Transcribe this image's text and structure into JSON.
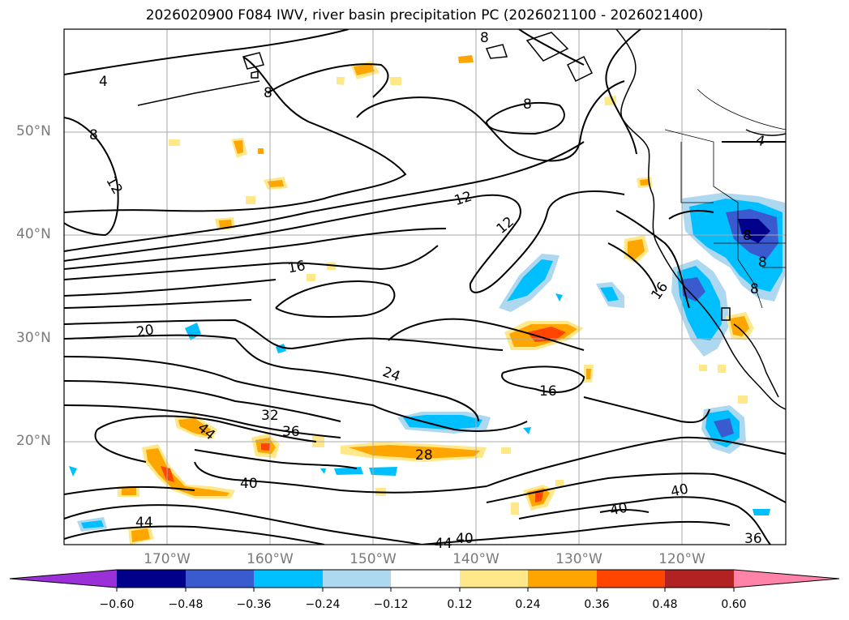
{
  "title": "2026020900 F084 IWV, river basin precipitation PC (2026021100 - 2026021400)",
  "map": {
    "projection": "plate-carree",
    "lon_range": [
      -180,
      -110
    ],
    "lat_range": [
      10,
      60
    ],
    "lat_ticks": [
      "50°N",
      "40°N",
      "30°N",
      "20°N"
    ],
    "lon_ticks": [
      "170°W",
      "160°W",
      "150°W",
      "140°W",
      "130°W",
      "120°W"
    ],
    "grid_color": "#aaaaaa",
    "tick_color": "#7a7a7a",
    "contour_labels": [
      "4",
      "8",
      "8",
      "8",
      "8",
      "12",
      "12",
      "12",
      "16",
      "16",
      "16",
      "20",
      "24",
      "28",
      "32",
      "36",
      "36",
      "40",
      "40",
      "40",
      "40",
      "44",
      "44",
      "44",
      "8",
      "8",
      "8",
      "4"
    ]
  },
  "colorbar": {
    "ticks": [
      "−0.60",
      "−0.48",
      "−0.36",
      "−0.24",
      "−0.12",
      "0.12",
      "0.24",
      "0.36",
      "0.48",
      "0.60"
    ],
    "colors": [
      "#9b30d9",
      "#00008b",
      "#3a5bd0",
      "#00bfff",
      "#add8f0",
      "#ffffff",
      "#ffe88a",
      "#ffa500",
      "#ff4500",
      "#b22222",
      "#ff82a8"
    ]
  }
}
